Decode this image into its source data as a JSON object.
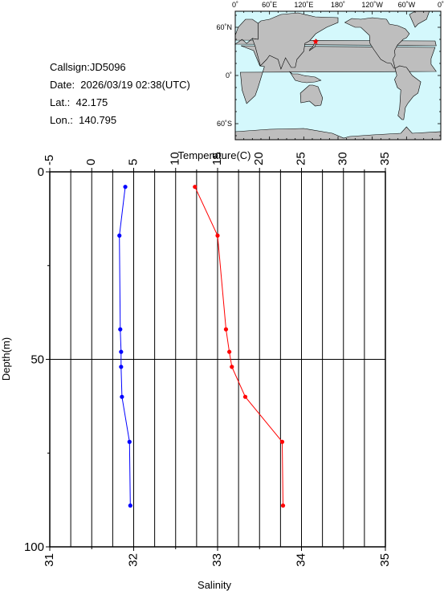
{
  "info": {
    "callsign": "Callsign:JD5096",
    "date": "Date:  2026/03/19 02:38(UTC)",
    "lat": "Lat.:  42.175",
    "lon": "Lon.:  140.795"
  },
  "map": {
    "lon_labels": [
      "0˚",
      "60˚E",
      "120˚E",
      "180˚",
      "120˚W",
      "60˚W",
      "0˚"
    ],
    "lat_labels": [
      "60˚N",
      "0˚",
      "60˚S"
    ],
    "marker_lat": 42.175,
    "marker_lon": 140.795,
    "ocean_color": "#d4f8fc",
    "land_color": "#bebebe",
    "marker_color": "#ff0000"
  },
  "chart_data": {
    "type": "line",
    "top_axis_label": "Temperature(C)",
    "bottom_axis_label": "Salinity",
    "ylabel": "Depth(m)",
    "temperature_ticks": [
      "-5",
      "0",
      "5",
      "10",
      "15",
      "20",
      "25",
      "30",
      "35"
    ],
    "temperature_range": [
      -5,
      35
    ],
    "salinity_ticks": [
      "31",
      "32",
      "33",
      "34",
      "35"
    ],
    "salinity_range": [
      31,
      35
    ],
    "depth_ticks": [
      "0",
      "50",
      "100"
    ],
    "depth_range": [
      0,
      100
    ],
    "series": [
      {
        "variable": "temperature",
        "color": "#ff0000",
        "points": [
          {
            "depth": 4,
            "value": 12.3
          },
          {
            "depth": 17,
            "value": 15.0
          },
          {
            "depth": 42,
            "value": 16.0
          },
          {
            "depth": 48,
            "value": 16.4
          },
          {
            "depth": 52,
            "value": 16.7
          },
          {
            "depth": 60,
            "value": 18.3
          },
          {
            "depth": 72,
            "value": 22.7
          },
          {
            "depth": 89,
            "value": 22.8
          }
        ]
      },
      {
        "variable": "salinity",
        "color": "#0000ff",
        "points": [
          {
            "depth": 4,
            "value": 31.9
          },
          {
            "depth": 17,
            "value": 31.83
          },
          {
            "depth": 42,
            "value": 31.84
          },
          {
            "depth": 48,
            "value": 31.85
          },
          {
            "depth": 52,
            "value": 31.85
          },
          {
            "depth": 60,
            "value": 31.86
          },
          {
            "depth": 72,
            "value": 31.95
          },
          {
            "depth": 89,
            "value": 31.96
          }
        ]
      }
    ],
    "grid": true
  }
}
